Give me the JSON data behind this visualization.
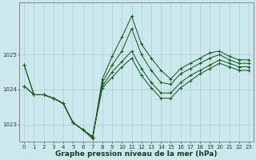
{
  "xlabel": "Graphe pression niveau de la mer (hPa)",
  "background_color": "#cce8ef",
  "grid_color": "#aacdd6",
  "line_color": "#1a5c1a",
  "x_hours": [
    0,
    1,
    2,
    3,
    4,
    5,
    6,
    7,
    8,
    9,
    10,
    11,
    12,
    13,
    14,
    15,
    16,
    17,
    18,
    19,
    20,
    21,
    22,
    23
  ],
  "series": [
    [
      1024.7,
      1023.85,
      1023.85,
      1023.75,
      1023.6,
      1023.05,
      1022.85,
      1022.6,
      1024.3,
      1024.95,
      1025.5,
      1026.1,
      1025.3,
      1024.9,
      1024.55,
      1024.3,
      1024.6,
      1024.75,
      1024.9,
      1025.05,
      1025.1,
      1024.95,
      1024.85,
      1024.85
    ],
    [
      1024.7,
      1023.85,
      1023.85,
      1023.75,
      1023.6,
      1023.05,
      1022.85,
      1022.6,
      1024.2,
      1024.7,
      1025.1,
      1025.75,
      1025.0,
      1024.55,
      1024.2,
      1024.15,
      1024.45,
      1024.6,
      1024.75,
      1024.9,
      1025.0,
      1024.85,
      1024.75,
      1024.75
    ],
    [
      1024.1,
      1023.85,
      1023.85,
      1023.75,
      1023.6,
      1023.05,
      1022.85,
      1022.65,
      1024.1,
      1024.5,
      1024.8,
      1025.1,
      1024.6,
      1024.2,
      1023.9,
      1023.9,
      1024.2,
      1024.4,
      1024.55,
      1024.7,
      1024.85,
      1024.75,
      1024.65,
      1024.65
    ],
    [
      1024.1,
      1023.85,
      1023.85,
      1023.75,
      1023.6,
      1023.05,
      1022.85,
      1022.65,
      1024.05,
      1024.35,
      1024.65,
      1024.9,
      1024.4,
      1024.05,
      1023.75,
      1023.75,
      1024.05,
      1024.25,
      1024.45,
      1024.6,
      1024.75,
      1024.65,
      1024.55,
      1024.55
    ]
  ],
  "ylim": [
    1022.5,
    1026.5
  ],
  "yticks": [
    1023,
    1024,
    1025
  ],
  "xticks": [
    0,
    1,
    2,
    3,
    4,
    5,
    6,
    7,
    8,
    9,
    10,
    11,
    12,
    13,
    14,
    15,
    16,
    17,
    18,
    19,
    20,
    21,
    22,
    23
  ],
  "tick_fontsize": 5.0,
  "xlabel_fontsize": 6.5,
  "linewidth": 0.75,
  "markersize": 2.5
}
